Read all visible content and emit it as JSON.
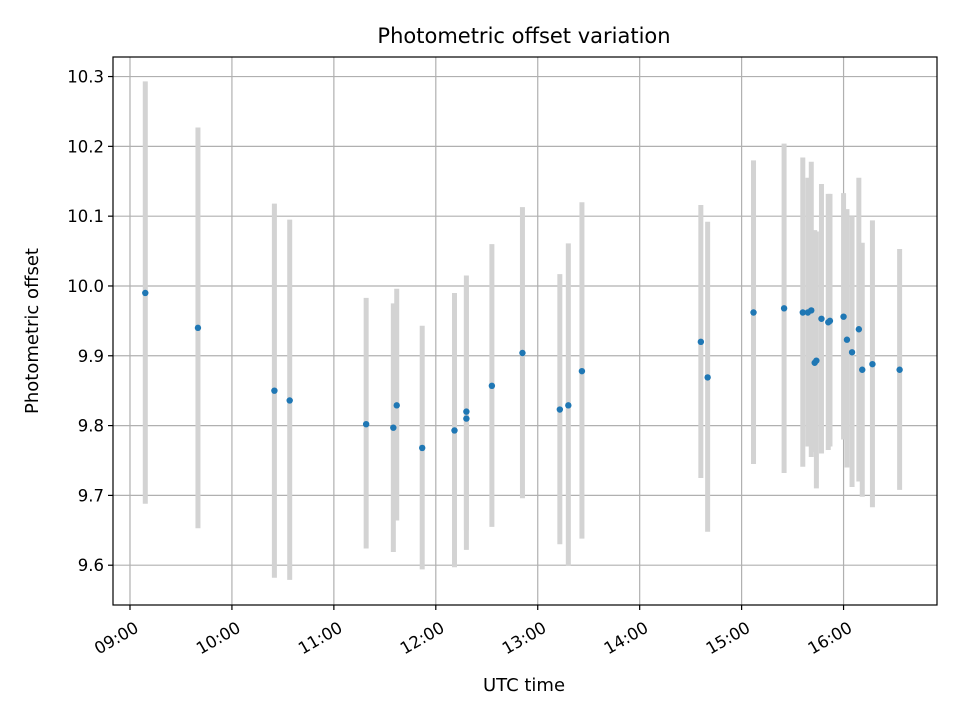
{
  "chart_data": {
    "type": "scatter",
    "title": "Photometric offset variation",
    "xlabel": "UTC time",
    "ylabel": "Photometric offset",
    "x_unit": "UTC time (HH:MM)",
    "xlim": [
      "08:50",
      "16:55"
    ],
    "ylim": [
      9.543,
      10.328
    ],
    "x_ticks": [
      "09:00",
      "10:00",
      "11:00",
      "12:00",
      "13:00",
      "14:00",
      "15:00",
      "16:00"
    ],
    "y_ticks": [
      9.6,
      9.7,
      9.8,
      9.9,
      10.0,
      10.1,
      10.2,
      10.3
    ],
    "y_tick_labels": [
      "9.6",
      "9.7",
      "9.8",
      "9.9",
      "10.0",
      "10.1",
      "10.2",
      "10.3"
    ],
    "grid": true,
    "colors": {
      "point": "#1f77b4",
      "errorbar": "#d3d3d3",
      "grid": "#b0b0b0"
    },
    "points": [
      {
        "x": "09:09",
        "y": 9.99,
        "ylow": 9.688,
        "yhigh": 10.293
      },
      {
        "x": "09:40",
        "y": 9.94,
        "ylow": 9.653,
        "yhigh": 10.227
      },
      {
        "x": "10:25",
        "y": 9.85,
        "ylow": 9.582,
        "yhigh": 10.118
      },
      {
        "x": "10:34",
        "y": 9.836,
        "ylow": 9.579,
        "yhigh": 10.095
      },
      {
        "x": "11:19",
        "y": 9.802,
        "ylow": 9.624,
        "yhigh": 9.983
      },
      {
        "x": "11:35",
        "y": 9.797,
        "ylow": 9.619,
        "yhigh": 9.975
      },
      {
        "x": "11:37",
        "y": 9.829,
        "ylow": 9.664,
        "yhigh": 9.996
      },
      {
        "x": "11:52",
        "y": 9.768,
        "ylow": 9.594,
        "yhigh": 9.943
      },
      {
        "x": "12:11",
        "y": 9.793,
        "ylow": 9.597,
        "yhigh": 9.99
      },
      {
        "x": "12:18",
        "y": 9.81,
        "ylow": 9.622,
        "yhigh": 10.0
      },
      {
        "x": "12:18",
        "y": 9.82,
        "ylow": 9.65,
        "yhigh": 10.015
      },
      {
        "x": "12:33",
        "y": 9.857,
        "ylow": 9.655,
        "yhigh": 10.06
      },
      {
        "x": "12:51",
        "y": 9.904,
        "ylow": 9.696,
        "yhigh": 10.113
      },
      {
        "x": "13:13",
        "y": 9.823,
        "ylow": 9.63,
        "yhigh": 10.017
      },
      {
        "x": "13:18",
        "y": 9.829,
        "ylow": 9.599,
        "yhigh": 10.061
      },
      {
        "x": "13:26",
        "y": 9.878,
        "ylow": 9.638,
        "yhigh": 10.12
      },
      {
        "x": "14:36",
        "y": 9.92,
        "ylow": 9.725,
        "yhigh": 10.116
      },
      {
        "x": "14:40",
        "y": 9.869,
        "ylow": 9.648,
        "yhigh": 10.092
      },
      {
        "x": "15:07",
        "y": 9.962,
        "ylow": 9.745,
        "yhigh": 10.18
      },
      {
        "x": "15:25",
        "y": 9.968,
        "ylow": 9.732,
        "yhigh": 10.204
      },
      {
        "x": "15:36",
        "y": 9.962,
        "ylow": 9.741,
        "yhigh": 10.184
      },
      {
        "x": "15:39",
        "y": 9.962,
        "ylow": 9.77,
        "yhigh": 10.155
      },
      {
        "x": "15:41",
        "y": 9.965,
        "ylow": 9.755,
        "yhigh": 10.178
      },
      {
        "x": "15:43",
        "y": 9.89,
        "ylow": 9.762,
        "yhigh": 10.08
      },
      {
        "x": "15:44",
        "y": 9.893,
        "ylow": 9.71,
        "yhigh": 10.078
      },
      {
        "x": "15:47",
        "y": 9.953,
        "ylow": 9.76,
        "yhigh": 10.146
      },
      {
        "x": "15:51",
        "y": 9.948,
        "ylow": 9.765,
        "yhigh": 10.132
      },
      {
        "x": "15:52",
        "y": 9.95,
        "ylow": 9.77,
        "yhigh": 10.132
      },
      {
        "x": "16:00",
        "y": 9.956,
        "ylow": 9.78,
        "yhigh": 10.133
      },
      {
        "x": "16:02",
        "y": 9.923,
        "ylow": 9.74,
        "yhigh": 10.11
      },
      {
        "x": "16:05",
        "y": 9.905,
        "ylow": 9.712,
        "yhigh": 10.1
      },
      {
        "x": "16:09",
        "y": 9.938,
        "ylow": 9.72,
        "yhigh": 10.155
      },
      {
        "x": "16:11",
        "y": 9.88,
        "ylow": 9.698,
        "yhigh": 10.062
      },
      {
        "x": "16:17",
        "y": 9.888,
        "ylow": 9.683,
        "yhigh": 10.094
      },
      {
        "x": "16:33",
        "y": 9.88,
        "ylow": 9.708,
        "yhigh": 10.053
      }
    ]
  }
}
